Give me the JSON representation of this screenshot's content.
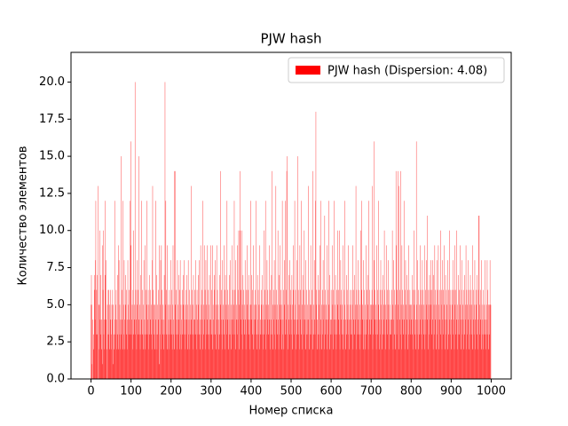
{
  "chart_data": {
    "type": "bar",
    "title": "PJW hash",
    "x_label": "Номер списка",
    "y_label": "Количество элементов",
    "legend": "upper right",
    "series": [
      {
        "name": "PJW hash (Dispersion: 4.08)",
        "color": "#ff0000",
        "values": [
          5,
          7,
          5,
          1,
          4,
          0,
          3,
          2,
          7,
          6,
          4,
          8,
          12,
          3,
          6,
          3,
          7,
          13,
          0,
          5,
          2,
          5,
          10,
          4,
          3,
          7,
          2,
          4,
          9,
          1,
          6,
          10,
          3,
          4,
          2,
          7,
          12,
          8,
          4,
          2,
          0,
          5,
          3,
          6,
          3,
          6,
          2,
          5,
          6,
          4,
          3,
          2,
          5,
          4,
          6,
          1,
          5,
          3,
          2,
          12,
          4,
          3,
          5,
          6,
          2,
          4,
          3,
          7,
          9,
          2,
          8,
          3,
          5,
          4,
          2,
          15,
          3,
          6,
          4,
          2,
          12,
          5,
          3,
          8,
          4,
          2,
          5,
          7,
          3,
          6,
          4,
          2,
          8,
          5,
          3,
          6,
          4,
          12,
          3,
          9,
          16,
          4,
          3,
          5,
          2,
          6,
          10,
          3,
          4,
          5,
          20,
          3,
          6,
          4,
          2,
          5,
          8,
          3,
          6,
          4,
          15,
          3,
          5,
          2,
          7,
          3,
          12,
          4,
          6,
          3,
          2,
          5,
          8,
          3,
          4,
          9,
          2,
          6,
          3,
          5,
          12,
          3,
          4,
          6,
          2,
          5,
          7,
          3,
          4,
          6,
          3,
          5,
          2,
          8,
          13,
          4,
          6,
          3,
          5,
          2,
          5,
          4,
          12,
          3,
          7,
          2,
          5,
          3,
          4,
          6,
          1,
          9,
          3,
          5,
          8,
          2,
          9,
          4,
          6,
          3,
          5,
          2,
          4,
          7,
          3,
          20,
          5,
          12,
          3,
          6,
          2,
          9,
          3,
          5,
          4,
          2,
          6,
          3,
          5,
          8,
          4,
          3,
          6,
          2,
          5,
          9,
          4,
          3,
          14,
          2,
          5,
          14,
          3,
          6,
          4,
          2,
          8,
          5,
          3,
          7,
          4,
          6,
          2,
          8,
          3,
          5,
          4,
          2,
          6,
          3,
          7,
          5,
          3,
          8,
          4,
          2,
          5,
          3,
          6,
          4,
          7,
          2,
          5,
          8,
          3,
          4,
          6,
          2,
          5,
          3,
          13,
          4,
          6,
          3,
          5,
          2,
          7,
          4,
          3,
          6,
          4,
          8,
          3,
          5,
          2,
          6,
          4,
          3,
          7,
          5,
          3,
          8,
          2,
          4,
          9,
          3,
          5,
          6,
          4,
          2,
          12,
          5,
          3,
          9,
          4,
          6,
          2,
          8,
          3,
          5,
          4,
          9,
          3,
          6,
          2,
          5,
          7,
          4,
          3,
          9,
          4,
          6,
          3,
          2,
          9,
          5,
          4,
          3,
          7,
          6,
          8,
          3,
          5,
          2,
          9,
          4,
          6,
          3,
          5,
          4,
          2,
          7,
          3,
          14,
          5,
          4,
          6,
          3,
          8,
          2,
          5,
          4,
          9,
          3,
          6,
          2,
          7,
          4,
          5,
          3,
          12,
          4,
          6,
          2,
          5,
          3,
          7,
          4,
          8,
          3,
          5,
          2,
          9,
          4,
          6,
          3,
          5,
          4,
          12,
          3,
          6,
          2,
          8,
          4,
          5,
          3,
          9,
          4,
          6,
          10,
          5,
          2,
          10,
          14,
          4,
          6,
          3,
          10,
          5,
          2,
          7,
          4,
          6,
          3,
          5,
          8,
          4,
          2,
          6,
          3,
          9,
          5,
          4,
          6,
          3,
          7,
          4,
          2,
          5,
          12,
          5,
          4,
          7,
          3,
          6,
          2,
          9,
          4,
          5,
          3,
          6,
          4,
          12,
          5,
          3,
          2,
          7,
          4,
          6,
          3,
          5,
          2,
          9,
          4,
          3,
          6,
          5,
          3,
          7,
          4,
          2,
          5,
          10,
          3,
          6,
          4,
          12,
          2,
          5,
          3,
          8,
          4,
          6,
          3,
          5,
          9,
          4,
          2,
          6,
          3,
          4,
          7,
          3,
          14,
          5,
          2,
          6,
          4,
          8,
          3,
          5,
          2,
          13,
          4,
          6,
          3,
          5,
          10,
          4,
          2,
          7,
          3,
          5,
          9,
          4,
          6,
          2,
          5,
          12,
          3,
          4,
          6,
          2,
          8,
          5,
          3,
          12,
          4,
          6,
          14,
          15,
          3,
          5,
          2,
          7,
          4,
          8,
          3,
          5,
          6,
          4,
          3,
          7,
          5,
          2,
          6,
          9,
          4,
          3,
          12,
          5,
          6,
          4,
          2,
          3,
          8,
          15,
          4,
          6,
          3,
          5,
          2,
          9,
          4,
          6,
          12,
          3,
          5,
          2,
          7,
          4,
          6,
          3,
          10,
          5,
          4,
          2,
          8,
          3,
          6,
          4,
          5,
          3,
          13,
          4,
          2,
          6,
          5,
          3,
          9,
          5,
          3,
          6,
          4,
          14,
          2,
          5,
          3,
          8,
          4,
          3,
          12,
          18,
          5,
          6,
          2,
          4,
          3,
          7,
          5,
          6,
          2,
          9,
          3,
          4,
          12,
          5,
          2,
          6,
          3,
          8,
          4,
          5,
          2,
          11,
          3,
          6,
          4,
          5,
          2,
          9,
          3,
          4,
          6,
          12,
          5,
          2,
          7,
          4,
          3,
          6,
          4,
          3,
          9,
          5,
          2,
          6,
          4,
          12,
          3,
          5,
          7,
          4,
          2,
          6,
          3,
          10,
          5,
          4,
          6,
          3,
          10,
          2,
          5,
          8,
          4,
          6,
          3,
          5,
          2,
          9,
          4,
          3,
          6,
          12,
          5,
          4,
          2,
          7,
          3,
          6,
          4,
          5,
          9,
          3,
          4,
          2,
          6,
          5,
          3,
          4,
          6,
          3,
          5,
          9,
          2,
          4,
          6,
          3,
          7,
          5,
          4,
          13,
          2,
          6,
          3,
          5,
          4,
          8,
          3,
          6,
          2,
          5,
          4,
          10,
          3,
          6,
          12,
          4,
          5,
          2,
          8,
          3,
          6,
          4,
          5,
          2,
          9,
          3,
          6,
          4,
          7,
          5,
          2,
          12,
          3,
          4,
          6,
          5,
          3,
          5,
          4,
          6,
          13,
          2,
          5,
          3,
          8,
          16,
          4,
          6,
          3,
          5,
          2,
          9,
          4,
          6,
          3,
          5,
          12,
          4,
          2,
          6,
          3,
          8,
          5,
          4,
          6,
          2,
          7,
          3,
          5,
          4,
          10,
          6,
          3,
          5,
          2,
          4,
          9,
          6,
          3,
          5,
          8,
          4,
          2,
          6,
          5,
          3,
          4,
          3,
          6,
          4,
          10,
          5,
          2,
          8,
          4,
          6,
          3,
          5,
          2,
          14,
          9,
          3,
          6,
          4,
          14,
          5,
          2,
          13,
          4,
          6,
          3,
          14,
          5,
          2,
          9,
          4,
          6,
          3,
          5,
          12,
          4,
          2,
          6,
          8,
          3,
          5,
          4,
          7,
          2,
          6,
          3,
          9,
          5,
          4,
          6,
          3,
          5,
          4,
          5,
          3,
          7,
          2,
          6,
          4,
          10,
          5,
          3,
          6,
          4,
          2,
          16,
          5,
          3,
          8,
          4,
          6,
          2,
          5,
          3,
          9,
          4,
          6,
          3,
          5,
          2,
          8,
          4,
          6,
          5,
          3,
          9,
          2,
          4,
          6,
          3,
          8,
          5,
          4,
          11,
          6,
          2,
          5,
          3,
          7,
          4,
          6,
          8,
          5,
          3,
          6,
          8,
          4,
          2,
          7,
          5,
          3,
          9,
          4,
          6,
          2,
          5,
          8,
          3,
          6,
          4,
          9,
          5,
          2,
          6,
          4,
          3,
          10,
          5,
          6,
          2,
          8,
          4,
          3,
          6,
          5,
          9,
          2,
          4,
          7,
          3,
          6,
          4,
          5,
          2,
          8,
          3,
          6,
          4,
          10,
          5,
          3,
          6,
          4,
          2,
          6,
          5,
          8,
          3,
          4,
          6,
          2,
          9,
          5,
          3,
          6,
          4,
          10,
          2,
          5,
          3,
          7,
          4,
          6,
          3,
          9,
          5,
          2,
          4,
          6,
          8,
          3,
          5,
          4,
          2,
          6,
          3,
          7,
          5,
          4,
          9,
          2,
          6,
          3,
          5,
          4,
          8,
          2,
          6,
          5,
          3,
          7,
          4,
          6,
          3,
          5,
          2,
          9,
          4,
          6,
          3,
          5,
          8,
          2,
          4,
          6,
          5,
          3,
          7,
          4,
          2,
          6,
          11,
          11,
          5,
          3,
          4,
          6,
          2,
          8,
          5,
          3,
          4,
          6,
          2,
          5,
          3,
          4,
          8,
          3,
          2,
          5,
          4,
          8,
          3,
          6,
          2,
          5,
          5,
          3,
          8,
          5,
          5
        ]
      }
    ],
    "xlim": [
      -50,
      1050
    ],
    "xticks": [
      0,
      100,
      200,
      300,
      400,
      500,
      600,
      700,
      800,
      900,
      1000
    ],
    "ylim": [
      0,
      22
    ],
    "yticks": [
      {
        "value": 0,
        "label": "0.0"
      },
      2.5,
      {
        "value": 5,
        "label": "5.0"
      },
      7.5,
      {
        "value": 10,
        "label": "10.0"
      },
      12.5,
      {
        "value": 15,
        "label": "15.0"
      },
      17.5,
      {
        "value": 20,
        "label": "20.0"
      }
    ]
  }
}
